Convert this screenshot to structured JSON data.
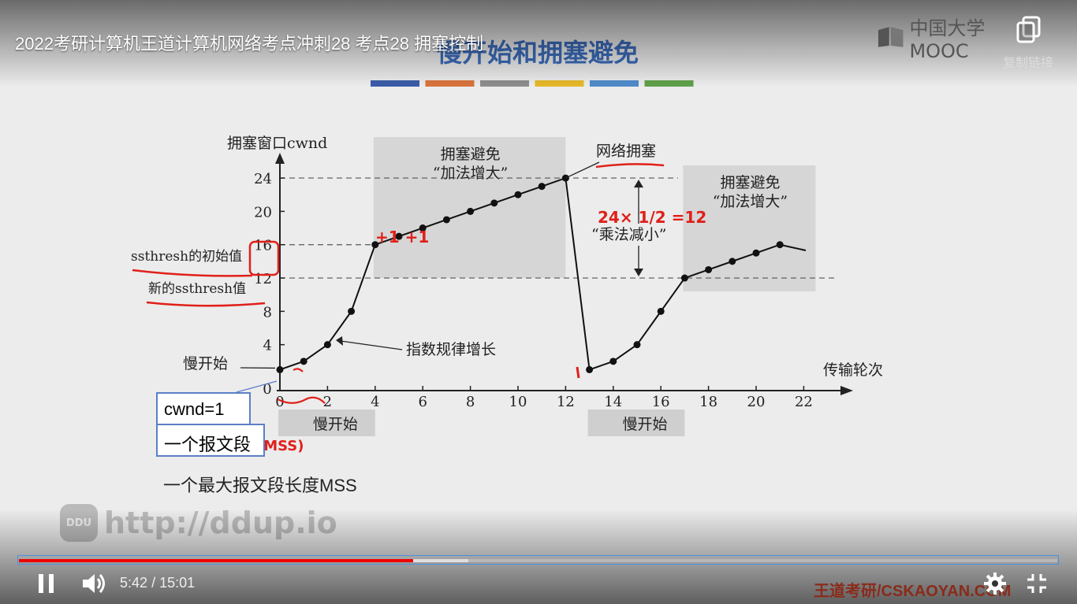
{
  "player": {
    "title": "2022考研计算机王道计算机网络考点冲刺28 考点28 拥塞控制",
    "copy_link_label": "复制链接",
    "brand_logo_text": "中国大学MOOC",
    "current_time": "5:42",
    "duration": "15:01",
    "time_separator": "/",
    "progress_played": 0.38,
    "progress_buffered": 0.433,
    "watermark_badge": "DDU",
    "watermark_url": "http://ddup.io",
    "footer_brand": "王道考研/CSKAOYAN.COM"
  },
  "slide": {
    "heading": "慢开始和拥塞避免",
    "color_bar": [
      "#3a5ca8",
      "#d8743c",
      "#8d8d8d",
      "#e6b829",
      "#4f8bc9",
      "#5fa04a"
    ],
    "annotations": {
      "cwnd_box": "cwnd=1",
      "segment_box": "一个报文段",
      "mss_note": "一个最大报文段长度MSS"
    }
  },
  "chart_data": {
    "type": "line",
    "ylabel": "拥塞窗口cwnd",
    "xlabel": "传输轮次",
    "xlim": [
      0,
      23
    ],
    "ylim": [
      0,
      27
    ],
    "xticks": [
      0,
      2,
      4,
      6,
      8,
      10,
      12,
      14,
      16,
      18,
      20,
      22
    ],
    "yticks": [
      0,
      4,
      8,
      12,
      16,
      20,
      24
    ],
    "points": [
      [
        0,
        1
      ],
      [
        1,
        2
      ],
      [
        2,
        4
      ],
      [
        3,
        8
      ],
      [
        4,
        16
      ],
      [
        5,
        17
      ],
      [
        6,
        18
      ],
      [
        7,
        19
      ],
      [
        8,
        20
      ],
      [
        9,
        21
      ],
      [
        10,
        22
      ],
      [
        11,
        23
      ],
      [
        12,
        24
      ],
      [
        13,
        1
      ],
      [
        14,
        2
      ],
      [
        15,
        4
      ],
      [
        16,
        8
      ],
      [
        17,
        12
      ],
      [
        18,
        13
      ],
      [
        19,
        14
      ],
      [
        20,
        15
      ],
      [
        21,
        16
      ]
    ],
    "threshold_lines": [
      24,
      16,
      12
    ],
    "threshold_labels": {
      "initial": "ssthresh的初始值",
      "new": "新的ssthresh值"
    },
    "regions": [
      {
        "label": "慢开始",
        "x0": 0,
        "x1": 4,
        "kind": "below"
      },
      {
        "label": "拥塞避免",
        "sublabel": "“加法增大”",
        "x0": 4,
        "x1": 12,
        "kind": "above"
      },
      {
        "label": "慢开始",
        "x0": 13,
        "x1": 17,
        "kind": "below"
      },
      {
        "label": "拥塞避免",
        "sublabel": "“加法增大”",
        "x0": 17,
        "x1": 22.5,
        "kind": "above"
      }
    ],
    "callouts": {
      "congestion": "网络拥塞",
      "multiplicative": "“乘法减小”",
      "exponential": "指数规律增长",
      "slow_start": "慢开始"
    },
    "handwriting": {
      "plus": "+1 +1",
      "formula": "24× 1/2 =12",
      "mss": "(MSS)"
    }
  }
}
